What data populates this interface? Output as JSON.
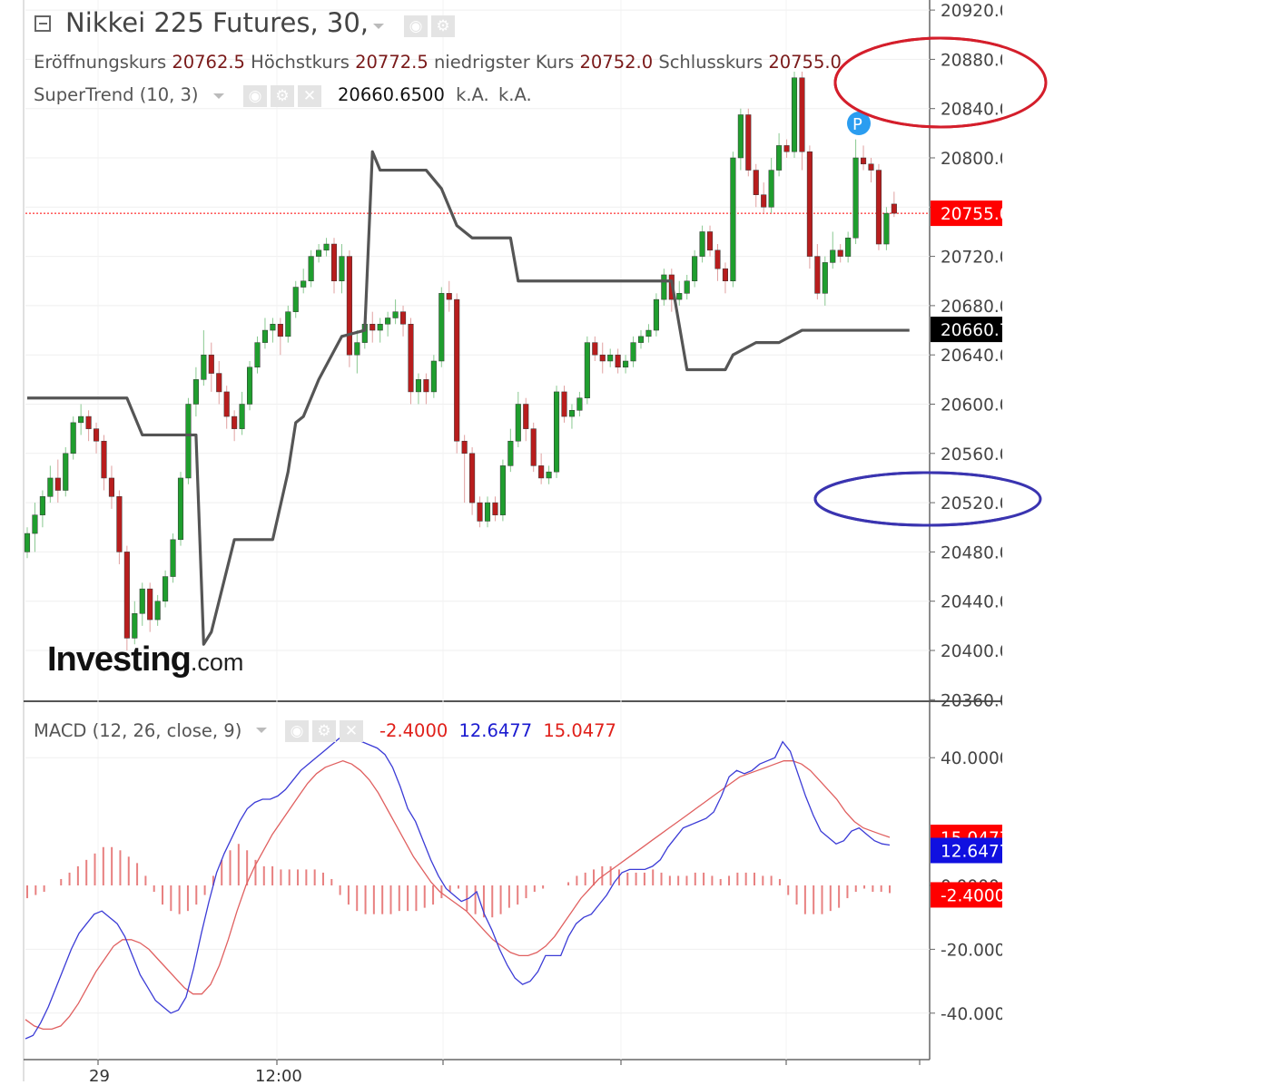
{
  "header": {
    "title": "Nikkei 225 Futures, 30,",
    "ohlc": [
      {
        "label": "Eröffnungskurs",
        "value": "20762.5"
      },
      {
        "label": "Höchstkurs",
        "value": "20772.5"
      },
      {
        "label": "niedrigster Kurs",
        "value": "20752.0"
      },
      {
        "label": "Schlusskurs",
        "value": "20755.0"
      }
    ]
  },
  "supertrend": {
    "label": "SuperTrend (10, 3)",
    "value": "20660.6500",
    "na1": "k.A.",
    "na2": "k.A."
  },
  "macd": {
    "label": "MACD (12, 26, close, 9)",
    "hist_value": "-2.4000",
    "macd_value": "12.6477",
    "signal_value": "15.0477"
  },
  "logo": {
    "main": "Investing",
    "suffix": ".com"
  },
  "colors": {
    "up": "#1f9e2e",
    "down": "#b81d1d",
    "supertrend": "#555555",
    "macd": "#3b3bd6",
    "signal": "#e06060",
    "hist": "#e88080",
    "current": "#ff0000"
  },
  "chart_data": [
    {
      "type": "candlestick",
      "title": "Nikkei 225 Futures, 30,",
      "ylim": [
        20360,
        20920
      ],
      "price_axis_labels": [
        "20920.0",
        "20880.0",
        "20840.0",
        "20800.0",
        "20760.0",
        "20720.0",
        "20680.0",
        "20640.0",
        "20600.0",
        "20560.0",
        "20520.0",
        "20480.0",
        "20440.0",
        "20400.0",
        "20360.0"
      ],
      "current_price_badge": "20755.0",
      "supertrend_badge": "20660.7",
      "time_labels": [
        "29",
        "12:00"
      ],
      "candles": [
        [
          20480,
          20495,
          20475,
          20500
        ],
        [
          20495,
          20510,
          20480,
          20520
        ],
        [
          20510,
          20525,
          20500,
          20530
        ],
        [
          20525,
          20540,
          20520,
          20550
        ],
        [
          20540,
          20530,
          20520,
          20555
        ],
        [
          20530,
          20560,
          20525,
          20565
        ],
        [
          20560,
          20585,
          20555,
          20590
        ],
        [
          20585,
          20590,
          20575,
          20600
        ],
        [
          20590,
          20580,
          20570,
          20595
        ],
        [
          20580,
          20570,
          20560,
          20585
        ],
        [
          20570,
          20540,
          20530,
          20575
        ],
        [
          20540,
          20525,
          20515,
          20550
        ],
        [
          20525,
          20480,
          20470,
          20530
        ],
        [
          20480,
          20410,
          20400,
          20485
        ],
        [
          20410,
          20430,
          20405,
          20440
        ],
        [
          20430,
          20450,
          20420,
          20455
        ],
        [
          20450,
          20425,
          20415,
          20455
        ],
        [
          20425,
          20440,
          20420,
          20445
        ],
        [
          20440,
          20460,
          20435,
          20465
        ],
        [
          20460,
          20490,
          20455,
          20495
        ],
        [
          20490,
          20540,
          20485,
          20545
        ],
        [
          20540,
          20600,
          20535,
          20605
        ],
        [
          20600,
          20620,
          20590,
          20630
        ],
        [
          20620,
          20640,
          20615,
          20660
        ],
        [
          20640,
          20625,
          20610,
          20650
        ],
        [
          20625,
          20610,
          20600,
          20635
        ],
        [
          20610,
          20590,
          20580,
          20615
        ],
        [
          20590,
          20580,
          20570,
          20595
        ],
        [
          20580,
          20600,
          20575,
          20610
        ],
        [
          20600,
          20630,
          20595,
          20635
        ],
        [
          20630,
          20650,
          20625,
          20655
        ],
        [
          20650,
          20660,
          20645,
          20670
        ],
        [
          20660,
          20665,
          20650,
          20670
        ],
        [
          20665,
          20655,
          20640,
          20670
        ],
        [
          20655,
          20675,
          20650,
          20680
        ],
        [
          20675,
          20695,
          20670,
          20700
        ],
        [
          20695,
          20700,
          20690,
          20710
        ],
        [
          20700,
          20720,
          20695,
          20725
        ],
        [
          20720,
          20725,
          20715,
          20730
        ],
        [
          20725,
          20730,
          20720,
          20735
        ],
        [
          20730,
          20700,
          20690,
          20735
        ],
        [
          20700,
          20720,
          20690,
          20730
        ],
        [
          20720,
          20640,
          20630,
          20725
        ],
        [
          20640,
          20650,
          20625,
          20660
        ],
        [
          20650,
          20665,
          20645,
          20670
        ],
        [
          20665,
          20660,
          20650,
          20675
        ],
        [
          20660,
          20665,
          20650,
          20670
        ],
        [
          20665,
          20670,
          20655,
          20675
        ],
        [
          20670,
          20675,
          20665,
          20685
        ],
        [
          20675,
          20665,
          20655,
          20680
        ],
        [
          20665,
          20610,
          20600,
          20670
        ],
        [
          20610,
          20620,
          20600,
          20625
        ],
        [
          20620,
          20610,
          20600,
          20625
        ],
        [
          20610,
          20635,
          20605,
          20640
        ],
        [
          20635,
          20690,
          20630,
          20695
        ],
        [
          20690,
          20685,
          20675,
          20700
        ],
        [
          20685,
          20570,
          20560,
          20690
        ],
        [
          20570,
          20560,
          20520,
          20575
        ],
        [
          20560,
          20520,
          20510,
          20565
        ],
        [
          20520,
          20505,
          20500,
          20525
        ],
        [
          20505,
          20520,
          20500,
          20525
        ],
        [
          20520,
          20510,
          20505,
          20525
        ],
        [
          20510,
          20550,
          20505,
          20555
        ],
        [
          20550,
          20570,
          20545,
          20580
        ],
        [
          20570,
          20600,
          20565,
          20610
        ],
        [
          20600,
          20580,
          20570,
          20605
        ],
        [
          20580,
          20550,
          20545,
          20585
        ],
        [
          20550,
          20540,
          20535,
          20560
        ],
        [
          20540,
          20545,
          20535,
          20550
        ],
        [
          20545,
          20610,
          20540,
          20615
        ],
        [
          20610,
          20590,
          20585,
          20615
        ],
        [
          20590,
          20595,
          20580,
          20600
        ],
        [
          20595,
          20605,
          20590,
          20610
        ],
        [
          20605,
          20650,
          20600,
          20655
        ],
        [
          20650,
          20640,
          20635,
          20655
        ],
        [
          20640,
          20635,
          20625,
          20650
        ],
        [
          20635,
          20640,
          20630,
          20645
        ],
        [
          20640,
          20630,
          20625,
          20645
        ],
        [
          20630,
          20635,
          20625,
          20640
        ],
        [
          20635,
          20650,
          20630,
          20655
        ],
        [
          20650,
          20655,
          20645,
          20660
        ],
        [
          20655,
          20660,
          20650,
          20665
        ],
        [
          20660,
          20685,
          20655,
          20690
        ],
        [
          20685,
          20705,
          20680,
          20710
        ],
        [
          20705,
          20685,
          20675,
          20710
        ],
        [
          20685,
          20690,
          20680,
          20700
        ],
        [
          20690,
          20700,
          20685,
          20705
        ],
        [
          20700,
          20720,
          20695,
          20725
        ],
        [
          20720,
          20740,
          20715,
          20745
        ],
        [
          20740,
          20725,
          20720,
          20745
        ],
        [
          20725,
          20710,
          20700,
          20730
        ],
        [
          20710,
          20700,
          20690,
          20715
        ],
        [
          20700,
          20800,
          20695,
          20805
        ],
        [
          20800,
          20835,
          20790,
          20840
        ],
        [
          20835,
          20790,
          20785,
          20840
        ],
        [
          20790,
          20770,
          20760,
          20795
        ],
        [
          20770,
          20760,
          20755,
          20780
        ],
        [
          20760,
          20790,
          20755,
          20800
        ],
        [
          20790,
          20810,
          20785,
          20820
        ],
        [
          20810,
          20805,
          20800,
          20815
        ],
        [
          20805,
          20865,
          20800,
          20870
        ],
        [
          20865,
          20805,
          20790,
          20870
        ],
        [
          20805,
          20720,
          20710,
          20810
        ],
        [
          20720,
          20690,
          20685,
          20730
        ],
        [
          20690,
          20715,
          20680,
          20720
        ],
        [
          20715,
          20725,
          20710,
          20740
        ],
        [
          20725,
          20720,
          20715,
          20730
        ],
        [
          20720,
          20735,
          20715,
          20740
        ],
        [
          20735,
          20800,
          20730,
          20815
        ],
        [
          20800,
          20795,
          20790,
          20810
        ],
        [
          20795,
          20790,
          20780,
          20800
        ],
        [
          20790,
          20730,
          20725,
          20795
        ],
        [
          20730,
          20755,
          20725,
          20760
        ],
        [
          20762.5,
          20755,
          20752,
          20772.5
        ]
      ],
      "supertrend": [
        [
          0,
          20605
        ],
        [
          13,
          20605
        ],
        [
          15,
          20575
        ],
        [
          22,
          20575
        ],
        [
          23,
          20405
        ],
        [
          24,
          20415
        ],
        [
          27,
          20490
        ],
        [
          32,
          20490
        ],
        [
          34,
          20545
        ],
        [
          35,
          20585
        ],
        [
          36,
          20590
        ],
        [
          38,
          20620
        ],
        [
          41,
          20655
        ],
        [
          44,
          20660
        ],
        [
          45,
          20805
        ],
        [
          46,
          20790
        ],
        [
          52,
          20790
        ],
        [
          54,
          20775
        ],
        [
          56,
          20745
        ],
        [
          58,
          20735
        ],
        [
          63,
          20735
        ],
        [
          64,
          20700
        ],
        [
          84,
          20700
        ],
        [
          86,
          20628
        ],
        [
          91,
          20628
        ],
        [
          92,
          20640
        ],
        [
          95,
          20650
        ],
        [
          98,
          20650
        ],
        [
          101,
          20660
        ],
        [
          115,
          20660
        ]
      ],
      "annotations": [
        {
          "shape": "ellipse",
          "color": "#d41e2b",
          "label": "20880.0 area"
        },
        {
          "shape": "ellipse",
          "color": "#3a34b0",
          "label": "20520.0 area"
        },
        {
          "shape": "circle-marker",
          "text": "P"
        }
      ]
    },
    {
      "type": "line",
      "title": "MACD (12, 26, close, 9)",
      "ylim": [
        -50,
        50
      ],
      "axis_labels": [
        "40.0000",
        "0.0000",
        "-20.0000",
        "-40.0000"
      ],
      "badges": {
        "signal": "15.0477",
        "macd": "12.6477",
        "hist": "-2.4000"
      },
      "series": [
        {
          "name": "MACD",
          "values": [
            -48,
            -47,
            -43,
            -38,
            -32,
            -26,
            -20,
            -15,
            -12,
            -9,
            -8,
            -10,
            -12,
            -16,
            -22,
            -28,
            -32,
            -36,
            -38,
            -40,
            -39,
            -35,
            -26,
            -15,
            -5,
            4,
            10,
            15,
            20,
            24,
            26,
            27,
            27,
            28,
            30,
            33,
            36,
            38,
            40,
            42,
            44,
            46,
            47,
            46,
            45,
            44,
            43,
            41,
            37,
            31,
            24,
            20,
            14,
            8,
            3,
            -1,
            -3,
            -5,
            -4,
            -2,
            -9,
            -14,
            -20,
            -25,
            -29,
            -31,
            -30,
            -27,
            -22,
            -22,
            -22,
            -16,
            -12,
            -10,
            -9,
            -6,
            -3,
            1,
            4,
            5,
            5,
            5,
            6,
            8,
            12,
            15,
            18,
            19,
            20,
            21,
            23,
            28,
            34,
            36,
            35,
            36,
            38,
            39,
            40,
            45,
            42,
            35,
            28,
            22,
            17,
            15,
            13,
            14,
            17,
            18,
            16,
            14,
            13,
            12.6477
          ]
        },
        {
          "name": "Signal",
          "values": [
            -42,
            -44,
            -45,
            -45,
            -44,
            -41,
            -37,
            -32,
            -27,
            -23,
            -19,
            -17,
            -17,
            -18,
            -20,
            -23,
            -26,
            -29,
            -32,
            -34,
            -34,
            -31,
            -25,
            -17,
            -8,
            0,
            6,
            11,
            16,
            20,
            24,
            28,
            32,
            35,
            37,
            38,
            39,
            38,
            36,
            33,
            29,
            24,
            19,
            14,
            9,
            5,
            1,
            -2,
            -4,
            -6,
            -8,
            -11,
            -14,
            -17,
            -19,
            -21,
            -22,
            -22,
            -21,
            -19,
            -16,
            -12,
            -8,
            -4,
            -1,
            2,
            4,
            6,
            8,
            10,
            12,
            14,
            16,
            18,
            20,
            22,
            24,
            26,
            28,
            30,
            32,
            34,
            35,
            36,
            37,
            38,
            39,
            39,
            38,
            36,
            33,
            30,
            27,
            23,
            20,
            18,
            17,
            16,
            15.0477
          ]
        },
        {
          "name": "Histogram",
          "values": [
            -4,
            -3,
            -2,
            0,
            2,
            4,
            6,
            8,
            10,
            12,
            12,
            11,
            9,
            7,
            3,
            -2,
            -6,
            -8,
            -9,
            -8,
            -6,
            -3,
            3,
            8,
            11,
            13,
            11,
            8,
            6,
            6,
            5,
            5,
            5,
            5,
            5,
            4,
            2,
            -3,
            -6,
            -8,
            -9,
            -9,
            -9,
            -9,
            -8,
            -8,
            -8,
            -7,
            -6,
            -4,
            -2,
            -1,
            -8,
            -9,
            -10,
            -10,
            -9,
            -7,
            -6,
            -4,
            -2,
            -1,
            0,
            0,
            1,
            3,
            4,
            5,
            6,
            6,
            5,
            4,
            4,
            4,
            5,
            4,
            3,
            3,
            3,
            4,
            4,
            3,
            2,
            3,
            4,
            4,
            4,
            3,
            3,
            2,
            -3,
            -6,
            -9,
            -9,
            -9,
            -8,
            -7,
            -4,
            -2,
            -1,
            -2,
            -2,
            -2.4
          ]
        }
      ]
    }
  ]
}
